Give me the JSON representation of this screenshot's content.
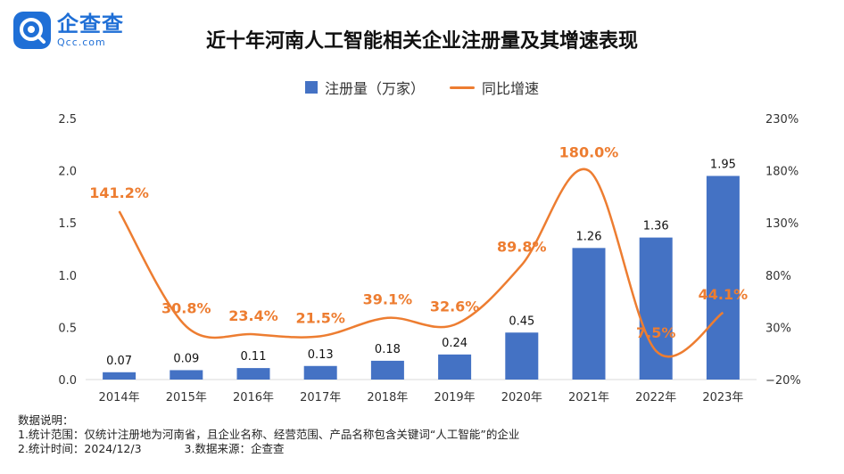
{
  "brand": {
    "name": "企查查",
    "sub": "Qcc.com"
  },
  "title": "近十年河南人工智能相关企业注册量及其增速表现",
  "legend": {
    "bar": "注册量（万家）",
    "line": "同比增速"
  },
  "colors": {
    "bar": "#4472c4",
    "line": "#ed7d31",
    "axis": "#d9d9d9",
    "text": "#222222"
  },
  "notes": {
    "heading": "数据说明：",
    "line1": "1.统计范围：仅统计注册地为河南省，且企业名称、经营范围、产品名称包含关键词“人工智能”的企业",
    "line2a": "2.统计时间：2024/12/3",
    "line2b": "3.数据来源：企查查"
  },
  "chart_data": {
    "type": "bar",
    "categories": [
      "2014年",
      "2015年",
      "2016年",
      "2017年",
      "2018年",
      "2019年",
      "2020年",
      "2021年",
      "2022年",
      "2023年"
    ],
    "series": [
      {
        "name": "注册量（万家）",
        "type": "bar",
        "axis": "left",
        "values": [
          0.07,
          0.09,
          0.11,
          0.13,
          0.18,
          0.24,
          0.45,
          1.26,
          1.36,
          1.95
        ],
        "labels": [
          "0.07",
          "0.09",
          "0.11",
          "0.13",
          "0.18",
          "0.24",
          "0.45",
          "1.26",
          "1.36",
          "1.95"
        ]
      },
      {
        "name": "同比增速",
        "type": "line",
        "axis": "right",
        "smooth": true,
        "values": [
          141.2,
          30.8,
          23.4,
          21.5,
          39.1,
          32.6,
          89.8,
          180.0,
          7.5,
          44.1
        ],
        "labels": [
          "141.2%",
          "30.8%",
          "23.4%",
          "21.5%",
          "39.1%",
          "32.6%",
          "89.8%",
          "180.0%",
          "7.5%",
          "44.1%"
        ]
      }
    ],
    "y_left": {
      "min": 0,
      "max": 2.5,
      "ticks": [
        "0.0",
        "0.5",
        "1.0",
        "1.5",
        "2.0",
        "2.5"
      ]
    },
    "y_right": {
      "min": -20,
      "max": 230,
      "ticks": [
        "−20%",
        "30%",
        "80%",
        "130%",
        "180%",
        "230%"
      ]
    },
    "grid": false,
    "legend_position": "top-center"
  }
}
